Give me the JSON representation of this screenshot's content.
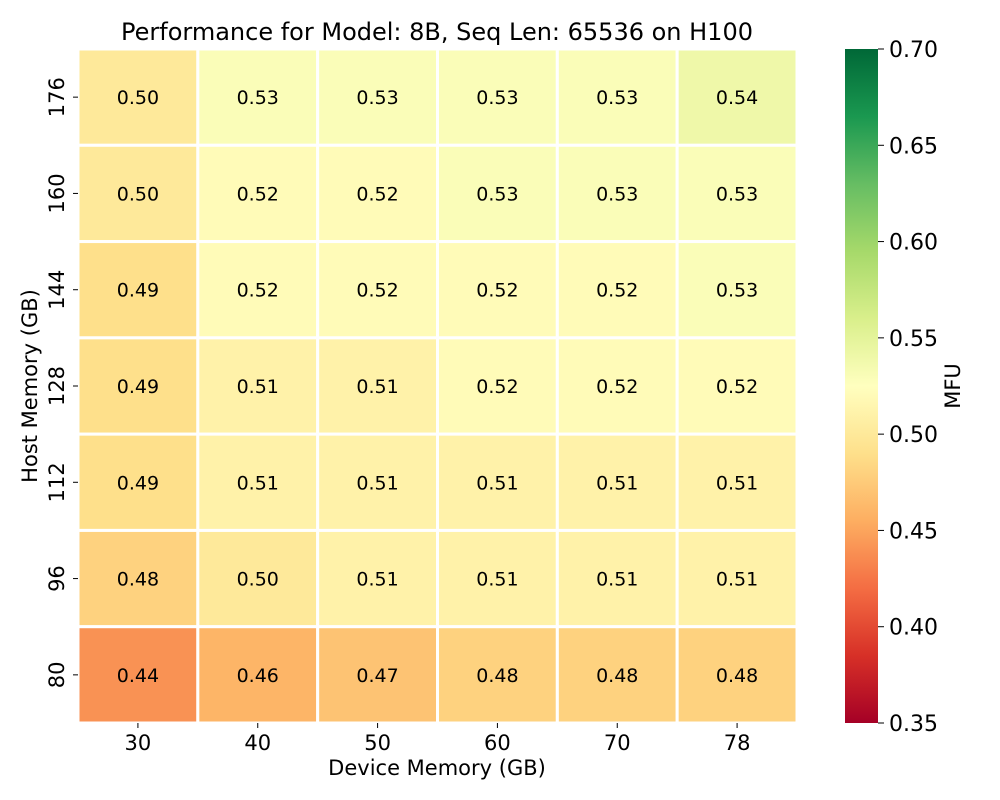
{
  "chart_data": {
    "type": "heatmap",
    "title": "Performance for Model: 8B, Seq Len: 65536 on H100",
    "xlabel": "Device Memory (GB)",
    "ylabel": "Host Memory (GB)",
    "x_categories": [
      "30",
      "40",
      "50",
      "60",
      "70",
      "78"
    ],
    "y_categories": [
      "176",
      "160",
      "144",
      "128",
      "112",
      "96",
      "80"
    ],
    "values": [
      [
        0.5,
        0.53,
        0.53,
        0.53,
        0.53,
        0.54
      ],
      [
        0.5,
        0.52,
        0.52,
        0.53,
        0.53,
        0.53
      ],
      [
        0.49,
        0.52,
        0.52,
        0.52,
        0.52,
        0.53
      ],
      [
        0.49,
        0.51,
        0.51,
        0.52,
        0.52,
        0.52
      ],
      [
        0.49,
        0.51,
        0.51,
        0.51,
        0.51,
        0.51
      ],
      [
        0.48,
        0.5,
        0.51,
        0.51,
        0.51,
        0.51
      ],
      [
        0.44,
        0.46,
        0.47,
        0.48,
        0.48,
        0.48
      ]
    ],
    "value_format": "0.00",
    "colormap": "RdYlGn",
    "colorbar": {
      "label": "MFU",
      "range": [
        0.35,
        0.7
      ],
      "ticks": [
        "0.35",
        "0.40",
        "0.45",
        "0.50",
        "0.55",
        "0.60",
        "0.65",
        "0.70"
      ]
    },
    "grid": false
  }
}
